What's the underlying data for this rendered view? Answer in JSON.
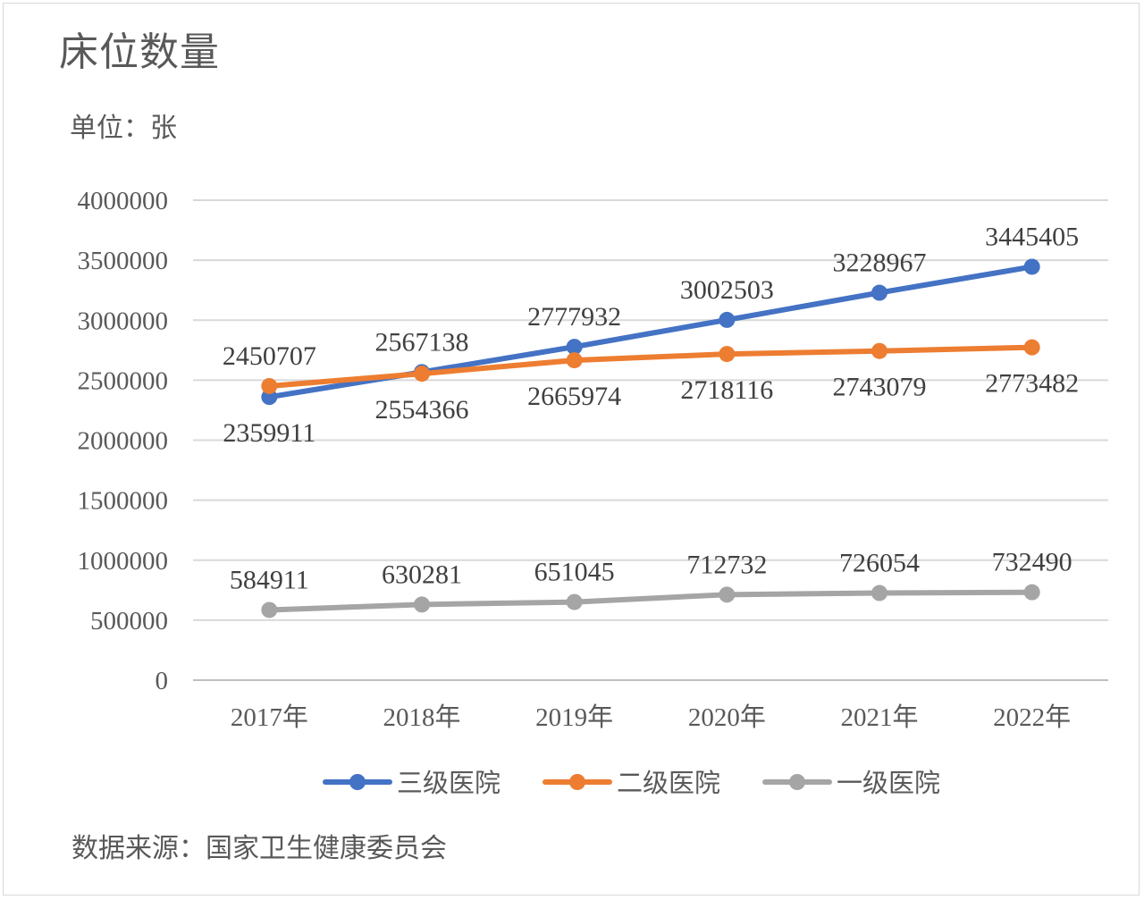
{
  "title": "床位数量",
  "unit_label": "单位：张",
  "source_label": "数据来源：国家卫生健康委员会",
  "chart_data": {
    "type": "line",
    "title": "床位数量",
    "x": [
      "2017年",
      "2018年",
      "2019年",
      "2020年",
      "2021年",
      "2022年"
    ],
    "ylim": [
      0,
      4000000
    ],
    "yticks": [
      0,
      500000,
      1000000,
      1500000,
      2000000,
      2500000,
      3000000,
      3500000,
      4000000
    ],
    "grid": true,
    "legend_position": "bottom",
    "series": [
      {
        "name": "三级医院",
        "color": "#4472c4",
        "label_position": "mixed",
        "values": [
          2359911,
          2567138,
          2777932,
          3002503,
          3228967,
          3445405
        ]
      },
      {
        "name": "二级医院",
        "color": "#ed7d31",
        "label_position": "mixed",
        "values": [
          2450707,
          2554366,
          2665974,
          2718116,
          2743079,
          2773482
        ]
      },
      {
        "name": "一级医院",
        "color": "#a5a5a5",
        "label_position": "above",
        "values": [
          584911,
          630281,
          651045,
          712732,
          726054,
          732490
        ]
      }
    ]
  }
}
